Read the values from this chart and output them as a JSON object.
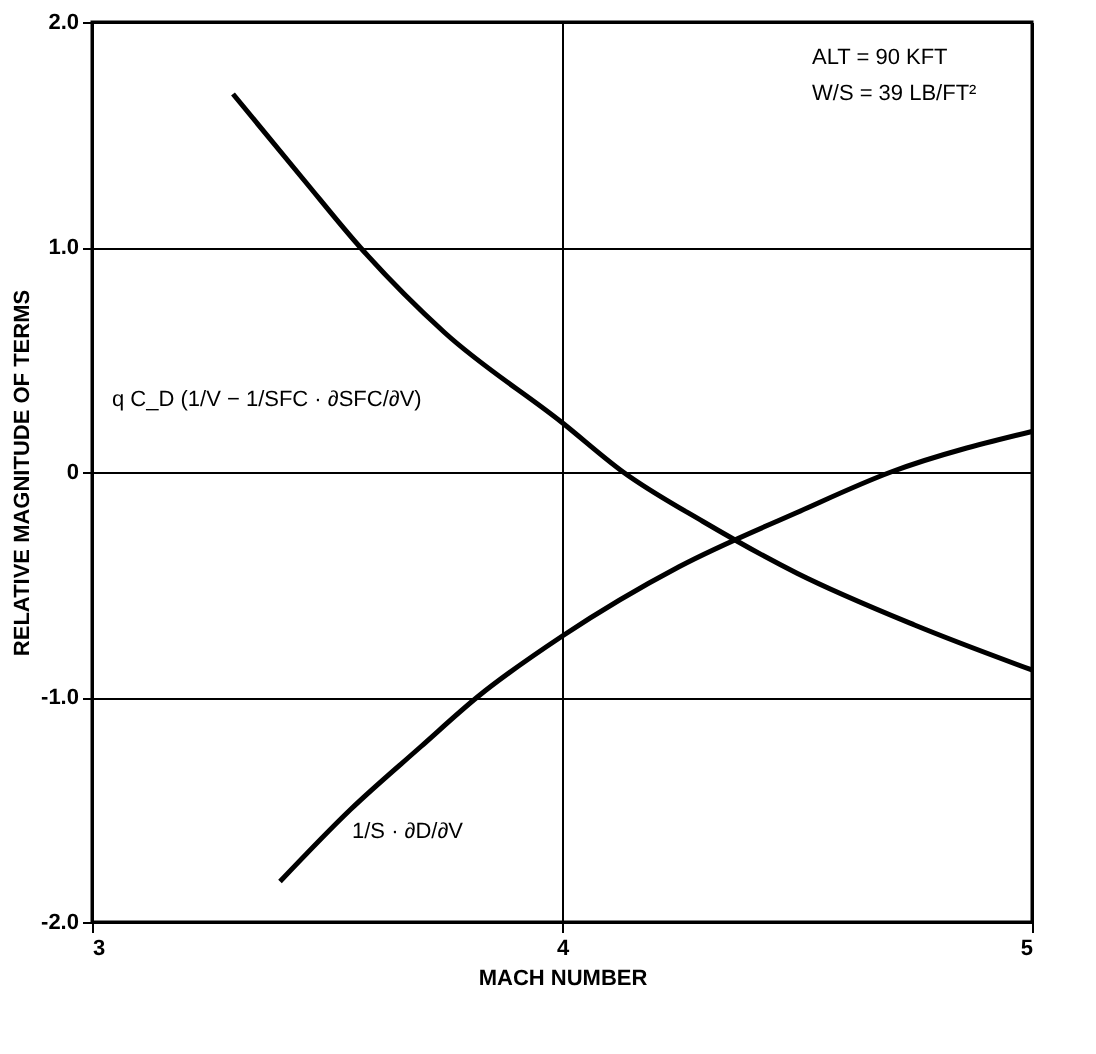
{
  "chart_data": {
    "type": "line",
    "xlabel": "MACH NUMBER",
    "ylabel": "RELATIVE MAGNITUDE OF TERMS",
    "xlim": [
      3,
      5
    ],
    "xticks": [
      3,
      4,
      5
    ],
    "ylim": [
      -2,
      2
    ],
    "yticks": [
      {
        "value": -2,
        "label": "-2.0"
      },
      {
        "value": -1,
        "label": "-1.0"
      },
      0,
      {
        "value": 1,
        "label": "1.0"
      },
      {
        "value": 2,
        "label": "2.0"
      }
    ],
    "grid": true,
    "marker": "none",
    "line_style": "solid",
    "annotations": [
      "ALT = 90 KFT",
      "W/S = 39 LB/FT²"
    ],
    "series": [
      {
        "name": "q C_D (1/V − 1/SFC · ∂SFC/∂V)",
        "color": "#000000",
        "x": [
          3.3,
          3.45,
          3.57,
          3.75,
          4.0,
          4.13,
          4.3,
          4.5,
          4.75,
          5.0
        ],
        "values": [
          1.68,
          1.3,
          1.0,
          0.62,
          0.22,
          0.0,
          -0.22,
          -0.45,
          -0.68,
          -0.88
        ]
      },
      {
        "name": "1/S · ∂D/∂V",
        "color": "#000000",
        "x": [
          3.4,
          3.55,
          3.7,
          3.82,
          4.0,
          4.25,
          4.5,
          4.7,
          5.0
        ],
        "values": [
          -1.82,
          -1.5,
          -1.22,
          -1.0,
          -0.73,
          -0.42,
          -0.18,
          0.0,
          0.18
        ]
      }
    ]
  }
}
